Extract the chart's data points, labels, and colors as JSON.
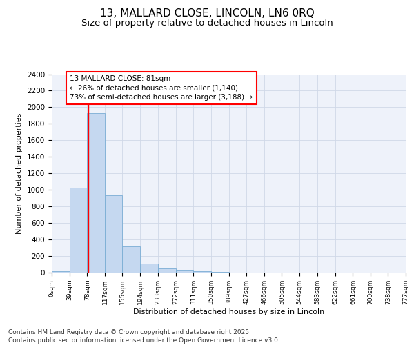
{
  "title_line1": "13, MALLARD CLOSE, LINCOLN, LN6 0RQ",
  "title_line2": "Size of property relative to detached houses in Lincoln",
  "xlabel": "Distribution of detached houses by size in Lincoln",
  "ylabel": "Number of detached properties",
  "bar_color": "#c5d8f0",
  "bar_edge_color": "#7aadd4",
  "bar_left_edges": [
    0,
    39,
    78,
    117,
    155,
    194,
    233,
    272,
    311,
    350,
    389,
    427,
    466,
    505,
    544,
    583,
    622,
    661,
    700,
    738
  ],
  "bar_widths": [
    39,
    39,
    39,
    38,
    39,
    39,
    39,
    39,
    39,
    39,
    38,
    39,
    39,
    39,
    39,
    39,
    39,
    39,
    38,
    39
  ],
  "bar_heights": [
    18,
    1030,
    1930,
    935,
    315,
    105,
    50,
    27,
    18,
    5,
    0,
    0,
    0,
    0,
    0,
    0,
    0,
    0,
    0,
    0
  ],
  "tick_labels": [
    "0sqm",
    "39sqm",
    "78sqm",
    "117sqm",
    "155sqm",
    "194sqm",
    "233sqm",
    "272sqm",
    "311sqm",
    "350sqm",
    "389sqm",
    "427sqm",
    "466sqm",
    "505sqm",
    "544sqm",
    "583sqm",
    "622sqm",
    "661sqm",
    "700sqm",
    "738sqm",
    "777sqm"
  ],
  "tick_positions": [
    0,
    39,
    78,
    117,
    155,
    194,
    233,
    272,
    311,
    350,
    389,
    427,
    466,
    505,
    544,
    583,
    622,
    661,
    700,
    738,
    777
  ],
  "xlim": [
    0,
    777
  ],
  "ylim": [
    0,
    2400
  ],
  "yticks": [
    0,
    200,
    400,
    600,
    800,
    1000,
    1200,
    1400,
    1600,
    1800,
    2000,
    2200,
    2400
  ],
  "red_line_x": 81,
  "annotation_box_text": "13 MALLARD CLOSE: 81sqm\n← 26% of detached houses are smaller (1,140)\n73% of semi-detached houses are larger (3,188) →",
  "grid_color": "#d0d8e8",
  "background_color": "#eef2fa",
  "footer_text": "Contains HM Land Registry data © Crown copyright and database right 2025.\nContains public sector information licensed under the Open Government Licence v3.0.",
  "title_fontsize": 11,
  "subtitle_fontsize": 9.5,
  "axis_label_fontsize": 8,
  "tick_fontsize": 6.5,
  "annotation_fontsize": 7.5,
  "footer_fontsize": 6.5
}
